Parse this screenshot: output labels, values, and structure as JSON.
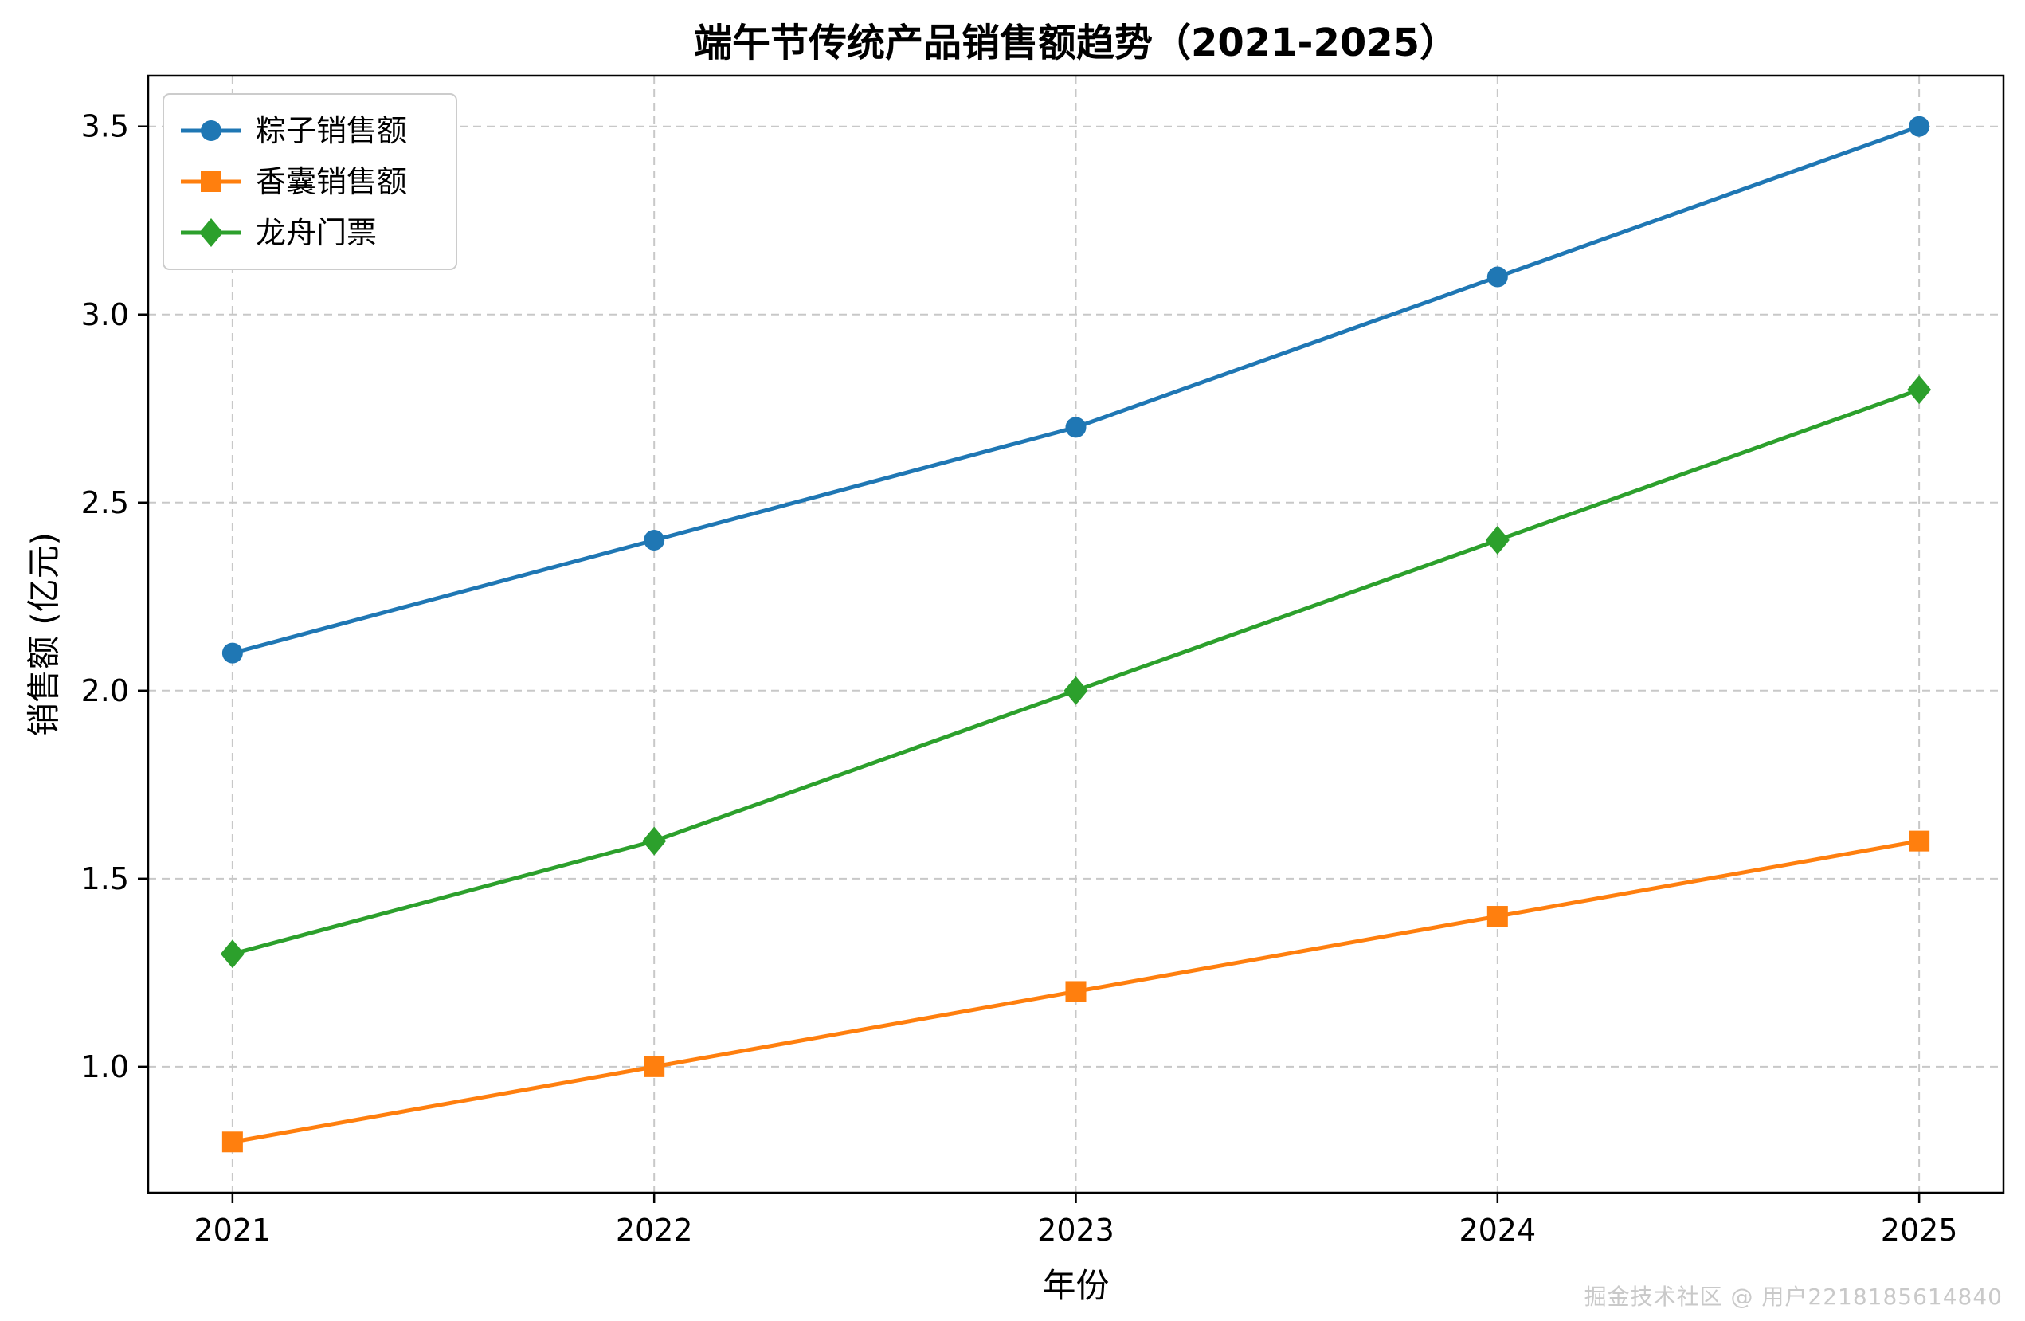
{
  "watermark": "掘金技术社区 @ 用户2218185614840",
  "chart_data": {
    "type": "line",
    "title": "端午节传统产品销售额趋势（2021-2025）",
    "xlabel": "年份",
    "ylabel": "销售额 (亿元)",
    "x": [
      2021,
      2022,
      2023,
      2024,
      2025
    ],
    "xticks": [
      2021,
      2022,
      2023,
      2024,
      2025
    ],
    "xtick_labels": [
      "2021",
      "2022",
      "2023",
      "2024",
      "2025"
    ],
    "yticks": [
      1.0,
      1.5,
      2.0,
      2.5,
      3.0,
      3.5
    ],
    "ytick_labels": [
      "1.0",
      "1.5",
      "2.0",
      "2.5",
      "3.0",
      "3.5"
    ],
    "xlim": [
      2020.8,
      2025.2
    ],
    "ylim": [
      0.665,
      3.635
    ],
    "grid": true,
    "legend_position": "upper left",
    "series": [
      {
        "name": "粽子销售额",
        "color": "#1f77b4",
        "marker": "circle",
        "values": [
          2.1,
          2.4,
          2.7,
          3.1,
          3.5
        ]
      },
      {
        "name": "香囊销售额",
        "color": "#ff7f0e",
        "marker": "square",
        "values": [
          0.8,
          1.0,
          1.2,
          1.4,
          1.6
        ]
      },
      {
        "name": "龙舟门票",
        "color": "#2ca02c",
        "marker": "diamond",
        "values": [
          1.3,
          1.6,
          2.0,
          2.4,
          2.8
        ]
      }
    ]
  }
}
